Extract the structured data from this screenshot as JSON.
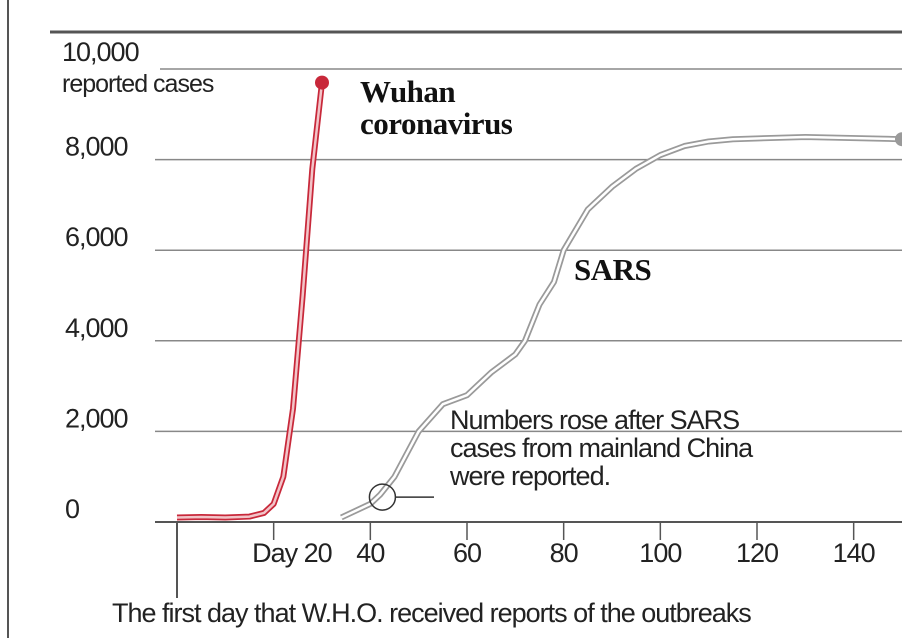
{
  "chart_data": {
    "type": "line",
    "y_axis_label": "reported cases",
    "xlim": [
      0,
      150
    ],
    "ylim": [
      0,
      10000
    ],
    "xticks": [
      {
        "value": 20,
        "label": "Day 20"
      },
      40,
      60,
      80,
      100,
      120,
      140
    ],
    "yticks": [
      0,
      {
        "value": 2000,
        "label": "2,000"
      },
      {
        "value": 4000,
        "label": "4,000"
      },
      {
        "value": 6000,
        "label": "6,000"
      },
      {
        "value": 8000,
        "label": "8,000"
      },
      {
        "value": 10000,
        "label": "10,000"
      }
    ],
    "grid": true,
    "series": [
      {
        "name": "Wuhan coronavirus",
        "color": "#c8283a",
        "x": [
          0,
          5,
          10,
          15,
          18,
          20,
          22,
          24,
          26,
          28,
          30
        ],
        "values": [
          100,
          110,
          100,
          120,
          200,
          400,
          1000,
          2500,
          5000,
          7800,
          9700
        ]
      },
      {
        "name": "SARS",
        "color": "#9a9a9a",
        "x": [
          34,
          40,
          42,
          45,
          50,
          55,
          60,
          65,
          70,
          72,
          75,
          78,
          80,
          85,
          90,
          95,
          100,
          105,
          110,
          115,
          130,
          150
        ],
        "values": [
          100,
          400,
          600,
          1000,
          2000,
          2600,
          2800,
          3300,
          3700,
          4000,
          4800,
          5300,
          6000,
          6900,
          7400,
          7800,
          8100,
          8300,
          8400,
          8450,
          8500,
          8450
        ]
      }
    ],
    "annotations": [
      {
        "text": "Numbers rose after SARS cases from mainland China were reported.",
        "x": 42.5,
        "y": 550
      },
      {
        "text": "The first day that W.H.O. received reports of the outbreaks",
        "x": 0
      }
    ]
  }
}
